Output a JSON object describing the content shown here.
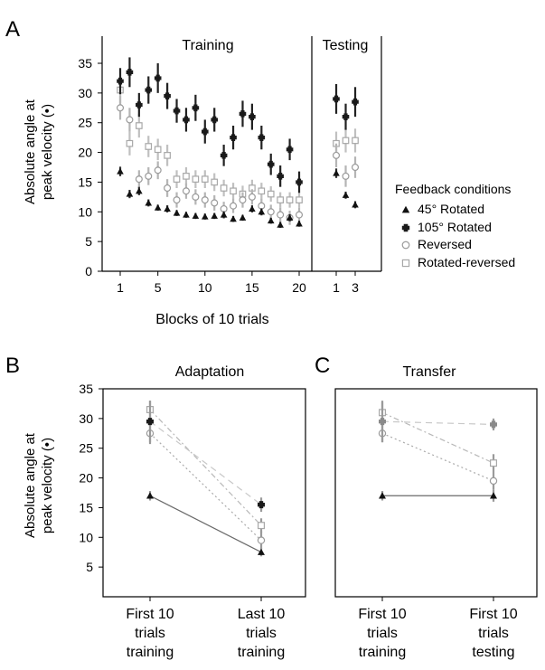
{
  "figure": {
    "panel_labels": [
      "A",
      "B",
      "C"
    ],
    "ylabel_line1": "Absolute angle at",
    "ylabel_line2": "peak velocity (•)"
  },
  "chart_data": [
    {
      "panel": "A",
      "type": "scatter",
      "error_bars": true,
      "section_titles": [
        "Training",
        "Testing"
      ],
      "xlabel": "Blocks of 10 trials",
      "ylabel": "Absolute angle at peak velocity (•)",
      "ylim": [
        0,
        35
      ],
      "yticks": [
        0,
        5,
        10,
        15,
        20,
        25,
        30,
        35
      ],
      "training_xticks": [
        "1",
        "5",
        "10",
        "15",
        "20"
      ],
      "testing_xticks": [
        "1",
        "3"
      ],
      "legend": {
        "title": "Feedback conditions",
        "position": "right",
        "entries": [
          "45° Rotated",
          "105° Rotated",
          "Reversed",
          "Rotated-reversed"
        ]
      },
      "series": [
        {
          "name": "45° Rotated",
          "marker": "triangle",
          "training": {
            "x": [
              1,
              2,
              3,
              4,
              5,
              6,
              7,
              8,
              9,
              10,
              11,
              12,
              13,
              14,
              15,
              16,
              17,
              18,
              19,
              20
            ],
            "y": [
              16.8,
              13.0,
              13.5,
              11.5,
              10.7,
              10.5,
              9.8,
              9.5,
              9.3,
              9.2,
              9.3,
              9.5,
              8.8,
              9.0,
              10.5,
              10.0,
              8.5,
              7.8,
              9.0,
              8.0
            ],
            "err": [
              0.8,
              0.7,
              0.7,
              0.6,
              0.5,
              0.6,
              0.5,
              0.5,
              0.5,
              0.5,
              0.5,
              0.6,
              0.5,
              0.5,
              0.6,
              0.6,
              0.5,
              0.5,
              0.6,
              0.5
            ]
          },
          "testing": {
            "x": [
              1,
              2,
              3
            ],
            "y": [
              16.5,
              12.8,
              11.2
            ],
            "err": [
              0.8,
              0.6,
              0.6
            ]
          }
        },
        {
          "name": "105° Rotated",
          "marker": "plus",
          "training": {
            "x": [
              1,
              2,
              3,
              4,
              5,
              6,
              7,
              8,
              9,
              10,
              11,
              12,
              13,
              14,
              15,
              16,
              17,
              18,
              19,
              20
            ],
            "y": [
              32.0,
              33.5,
              28.0,
              30.5,
              32.5,
              29.5,
              27.0,
              25.5,
              27.5,
              23.5,
              25.5,
              19.5,
              22.5,
              26.5,
              26.0,
              22.5,
              18.0,
              16.0,
              20.5,
              15.0
            ],
            "err": [
              2.2,
              2.5,
              2.0,
              2.3,
              2.5,
              2.2,
              2.0,
              2.0,
              2.2,
              2.0,
              2.0,
              1.8,
              2.0,
              2.2,
              2.2,
              2.0,
              1.8,
              1.8,
              1.8,
              1.8
            ]
          },
          "testing": {
            "x": [
              1,
              2,
              3
            ],
            "y": [
              29.0,
              26.0,
              28.5
            ],
            "err": [
              2.5,
              2.2,
              2.5
            ]
          }
        },
        {
          "name": "Reversed",
          "marker": "circle",
          "training": {
            "x": [
              1,
              2,
              3,
              4,
              5,
              6,
              7,
              8,
              9,
              10,
              11,
              12,
              13,
              14,
              15,
              16,
              17,
              18,
              19,
              20
            ],
            "y": [
              27.5,
              25.5,
              15.5,
              16.0,
              17.0,
              14.0,
              12.0,
              13.5,
              12.5,
              12.0,
              11.5,
              10.5,
              11.0,
              12.0,
              12.5,
              11.0,
              10.0,
              9.5,
              9.0,
              9.5
            ],
            "err": [
              2.0,
              2.0,
              1.5,
              1.5,
              1.5,
              1.5,
              1.3,
              1.3,
              1.3,
              1.3,
              1.3,
              1.2,
              1.2,
              1.3,
              1.3,
              1.2,
              1.2,
              1.2,
              1.2,
              1.2
            ]
          },
          "testing": {
            "x": [
              1,
              2,
              3
            ],
            "y": [
              19.5,
              16.0,
              17.5
            ],
            "err": [
              2.0,
              1.8,
              1.8
            ]
          }
        },
        {
          "name": "Rotated-reversed",
          "marker": "square",
          "training": {
            "x": [
              1,
              2,
              3,
              4,
              5,
              6,
              7,
              8,
              9,
              10,
              11,
              12,
              13,
              14,
              15,
              16,
              17,
              18,
              19,
              20
            ],
            "y": [
              30.5,
              21.5,
              24.5,
              21.0,
              20.5,
              19.5,
              15.5,
              16.0,
              15.5,
              15.5,
              15.0,
              14.0,
              13.5,
              13.0,
              14.0,
              13.5,
              13.0,
              12.0,
              12.0,
              12.0
            ],
            "err": [
              2.2,
              2.0,
              2.0,
              1.8,
              1.8,
              1.8,
              1.5,
              1.5,
              1.5,
              1.5,
              1.5,
              1.4,
              1.4,
              1.4,
              1.4,
              1.4,
              1.3,
              1.3,
              1.3,
              1.3
            ]
          },
          "testing": {
            "x": [
              1,
              2,
              3
            ],
            "y": [
              21.5,
              22.0,
              22.0
            ],
            "err": [
              2.0,
              2.0,
              2.0
            ]
          }
        }
      ]
    },
    {
      "panel": "B",
      "type": "line",
      "title": "Adaptation",
      "categories": [
        "First 10\ntrials\ntraining",
        "Last 10\ntrials\ntraining"
      ],
      "ylim": [
        0,
        35
      ],
      "yticks": [
        5,
        10,
        15,
        20,
        25,
        30,
        35
      ],
      "series": [
        {
          "name": "45° Rotated",
          "marker": "triangle",
          "values": [
            17.0,
            7.5
          ],
          "err": [
            0.8,
            0.7
          ]
        },
        {
          "name": "105° Rotated",
          "marker": "plus",
          "values": [
            29.5,
            15.5
          ],
          "err": [
            3.5,
            1.2
          ]
        },
        {
          "name": "Reversed",
          "marker": "circle",
          "values": [
            27.5,
            9.5
          ],
          "err": [
            1.8,
            1.5
          ]
        },
        {
          "name": "Rotated-reversed",
          "marker": "square",
          "values": [
            31.5,
            12.0
          ],
          "err": [
            1.5,
            1.2
          ]
        }
      ]
    },
    {
      "panel": "C",
      "type": "line",
      "title": "Transfer",
      "categories": [
        "First 10\ntrials\ntraining",
        "First 10\ntrials\ntesting"
      ],
      "ylim": [
        0,
        35
      ],
      "series": [
        {
          "name": "45° Rotated",
          "marker": "triangle",
          "values": [
            17.0,
            17.0
          ],
          "err": [
            0.8,
            1.0
          ]
        },
        {
          "name": "105° Rotated",
          "marker": "plus",
          "values": [
            29.5,
            29.0
          ],
          "err": [
            3.5,
            1.0
          ]
        },
        {
          "name": "Reversed",
          "marker": "circle",
          "values": [
            27.5,
            19.5
          ],
          "err": [
            1.5,
            1.5
          ]
        },
        {
          "name": "Rotated-reversed",
          "marker": "square",
          "values": [
            31.0,
            22.5
          ],
          "err": [
            1.8,
            1.5
          ]
        }
      ]
    }
  ]
}
